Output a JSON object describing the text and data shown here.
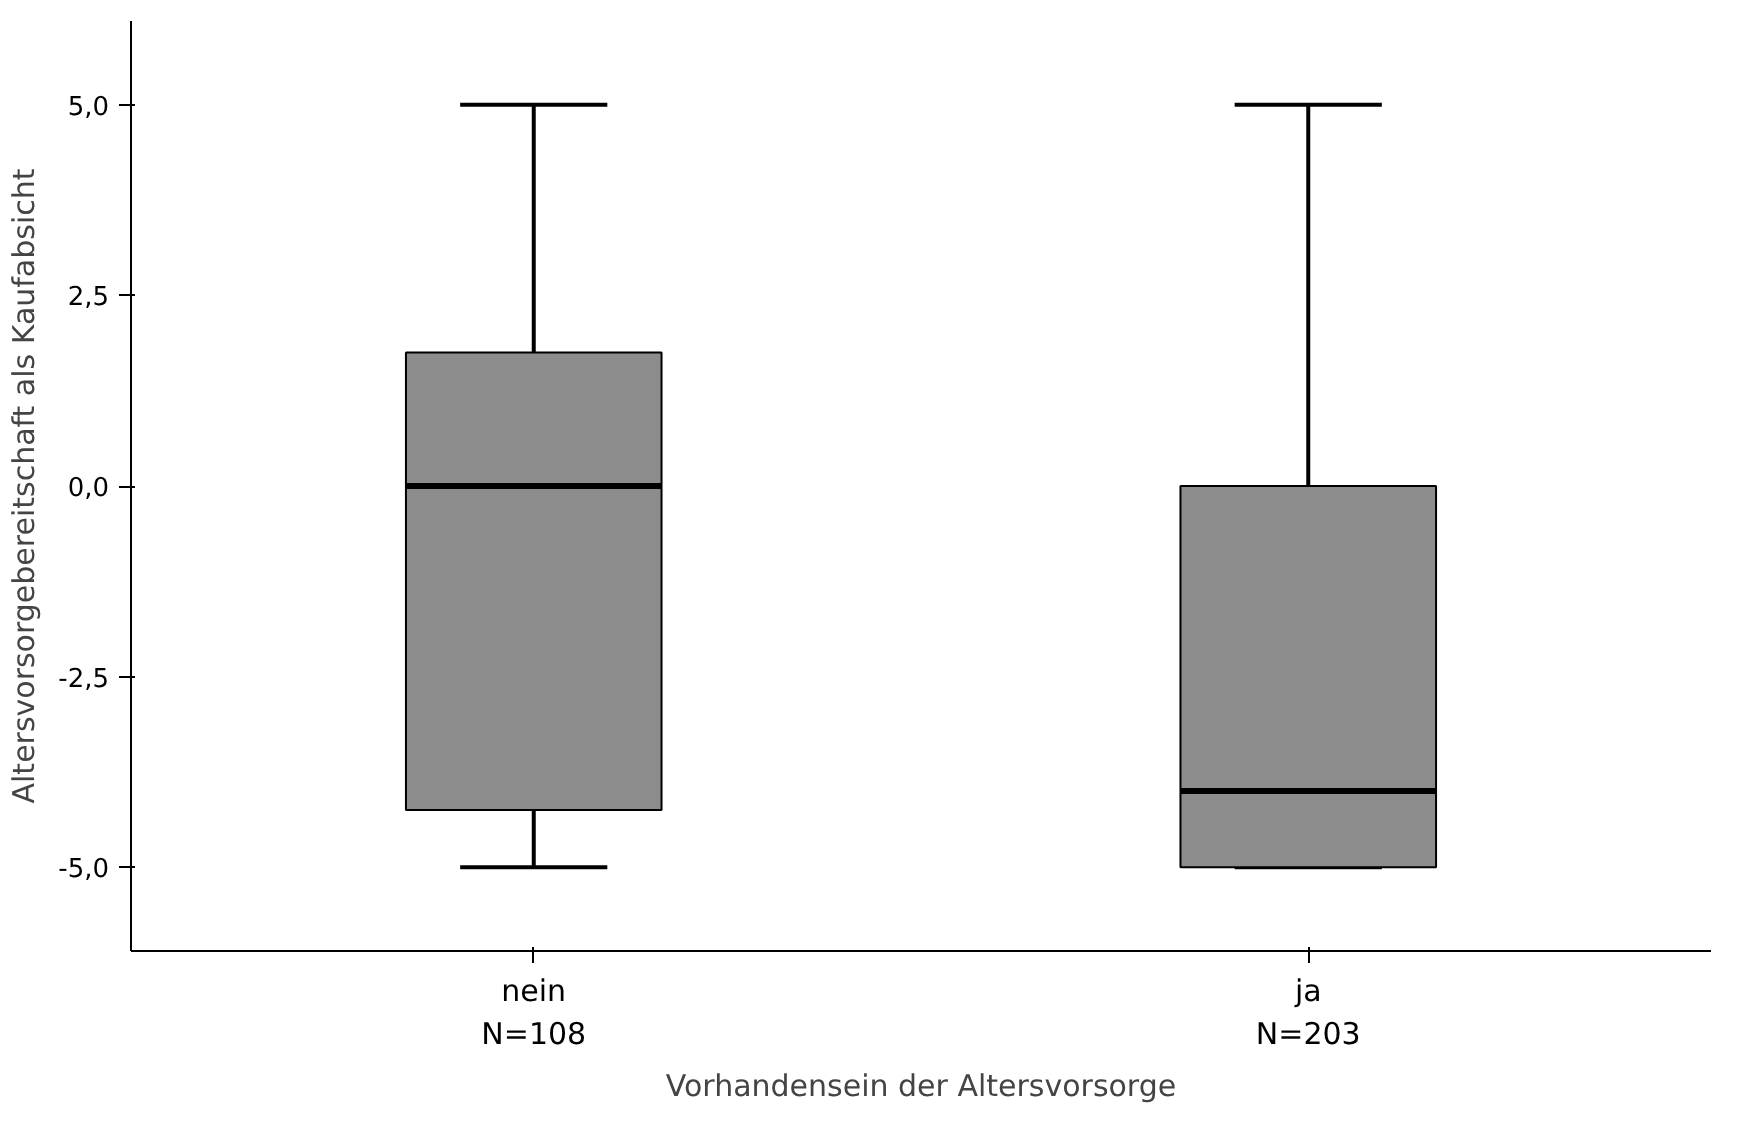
{
  "chart_data": {
    "type": "box",
    "xlabel": "Vorhandensein der Altersvorsorge",
    "ylabel": "Altersvorsorgebereitschaft als Kaufabsicht",
    "categories": [
      "nein\nN=108",
      "ja\nN=203"
    ],
    "boxes": [
      {
        "low": -5,
        "q1": -4.25,
        "median": 0,
        "q3": 1.75,
        "high": 5
      },
      {
        "low": -5,
        "q1": -5,
        "median": -4,
        "q3": 0,
        "high": 5
      }
    ],
    "color": "#8c8c8c",
    "ylim": [
      -6.1,
      6.1
    ],
    "yticks": [
      {
        "value": -5,
        "label": "-5,0"
      },
      {
        "value": -2.5,
        "label": "-2,5"
      },
      {
        "value": 0,
        "label": "0,0"
      },
      {
        "value": 2.5,
        "label": "2,5"
      },
      {
        "value": 5,
        "label": "5,0"
      }
    ],
    "grid": false
  }
}
